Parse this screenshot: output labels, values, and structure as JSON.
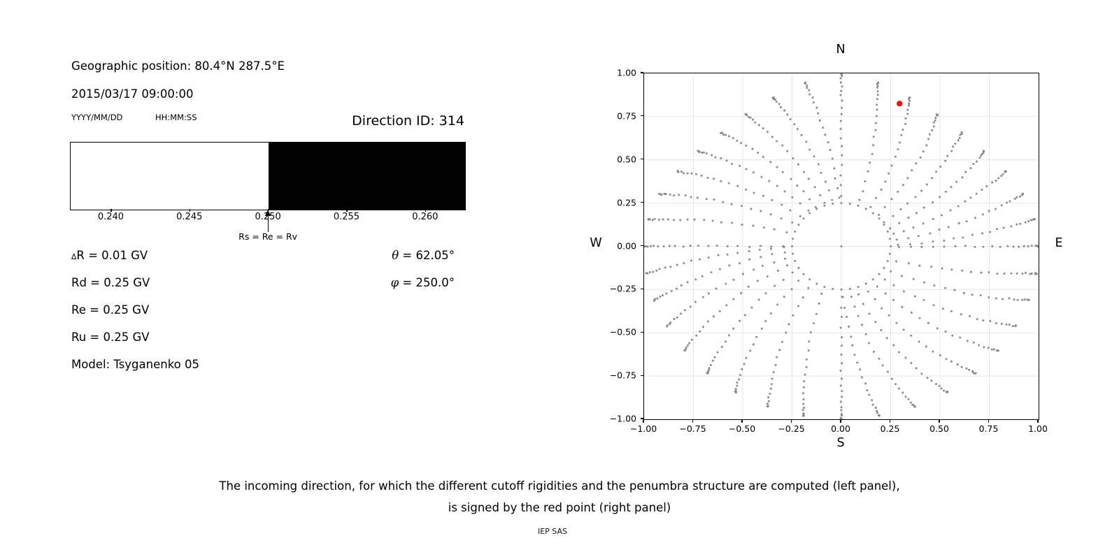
{
  "left_panel": {
    "geo": "Geographic position: 80.4°N 287.5°E",
    "datetime": "2015/03/17 09:00:00",
    "date_format": "YYYY/MM/DD",
    "time_format": "HH:MM:SS",
    "direction_id": "Direction ID: 314",
    "values": {
      "delta_sym": "∆",
      "delta_rest": "R = 0.01 GV",
      "rd": "Rd = 0.25 GV",
      "re": "Re = 0.25 GV",
      "ru": "Ru = 0.25 GV",
      "model": "Model: Tsyganenko 05",
      "theta_sym": "θ",
      "theta_rest": " = 62.05°",
      "phi_sym": "φ",
      "phi_rest": " = 250.0°"
    }
  },
  "caption": {
    "line1": "The incoming direction, for which the different cutoff rigidities and the penumbra structure are computed (left panel),",
    "line2": "is signed by the red point (right panel)",
    "credit": "IEP SAS"
  },
  "chart_data": [
    {
      "id": "penumbra-band",
      "type": "band",
      "xlabel_unit": "GV",
      "xlim": [
        0.2374,
        0.2625
      ],
      "ticks": [
        {
          "label": "0.240",
          "value": 0.24
        },
        {
          "label": "0.245",
          "value": 0.245
        },
        {
          "label": "0.250",
          "value": 0.25
        },
        {
          "label": "0.255",
          "value": 0.255
        },
        {
          "label": "0.260",
          "value": 0.26
        }
      ],
      "segments": [
        {
          "name": "white-band",
          "from": 0.2374,
          "to": 0.25,
          "color": "#ffffff"
        },
        {
          "name": "black-band",
          "from": 0.25,
          "to": 0.2625,
          "color": "#000000"
        }
      ],
      "arrow": {
        "value": 0.25,
        "label": "Rs = Re = Rv"
      }
    },
    {
      "id": "direction-map",
      "type": "scatter",
      "xlim": [
        -1,
        1
      ],
      "ylim": [
        -1,
        1
      ],
      "grid": true,
      "grid_color": "#e7e7e7",
      "point_color": "#878787",
      "red_color": "#ee1111",
      "compass": {
        "top": "N",
        "bottom": "S",
        "left": "W",
        "right": "E"
      },
      "x_ticks": [
        {
          "label": "−1.00",
          "value": -1.0
        },
        {
          "label": "−0.75",
          "value": -0.75
        },
        {
          "label": "−0.50",
          "value": -0.5
        },
        {
          "label": "−0.25",
          "value": -0.25
        },
        {
          "label": "0.00",
          "value": 0.0
        },
        {
          "label": "0.25",
          "value": 0.25
        },
        {
          "label": "0.50",
          "value": 0.5
        },
        {
          "label": "0.75",
          "value": 0.75
        },
        {
          "label": "1.00",
          "value": 1.0
        }
      ],
      "y_ticks": [
        {
          "label": "1.00",
          "value": 1.0
        },
        {
          "label": "0.75",
          "value": 0.75
        },
        {
          "label": "0.50",
          "value": 0.5
        },
        {
          "label": "0.25",
          "value": 0.25
        },
        {
          "label": "0.00",
          "value": 0.0
        },
        {
          "label": "−0.25",
          "value": -0.25
        },
        {
          "label": "−0.50",
          "value": -0.5
        },
        {
          "label": "−0.75",
          "value": -0.75
        },
        {
          "label": "−1.00",
          "value": -1.0
        }
      ],
      "red_point": {
        "x": 0.295,
        "y": 0.825
      },
      "scatter_spec": {
        "ray_count": 36,
        "ray_step_deg": 10,
        "warp_deg": 2.9,
        "curl_deg_per_unit": 22,
        "rmax_dip": 0.13,
        "rmax_cos_pow": 0.8,
        "rmax_sin2_pow": 1.2,
        "zenith_start_deg": 90,
        "zenith_step_deg": 3.65,
        "zenith_count": 21,
        "ring": {
          "radius": 0.25,
          "count": 36
        },
        "center_dot": true,
        "dot_size_px": 2.8
      }
    }
  ]
}
